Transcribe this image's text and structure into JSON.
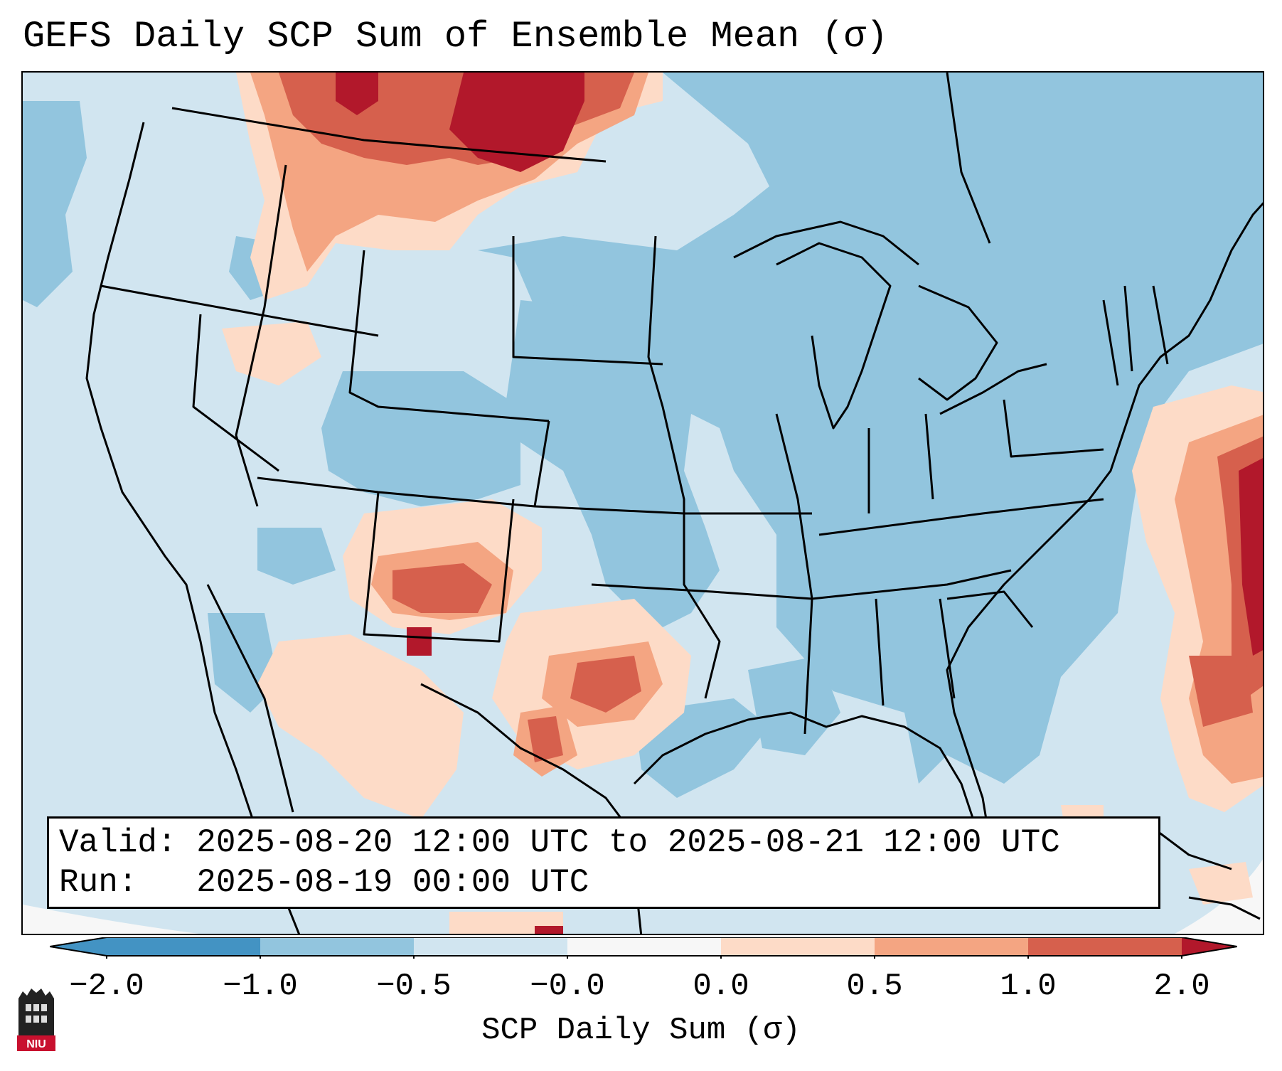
{
  "title": "GEFS Daily SCP Sum of Ensemble Mean (σ)",
  "info": {
    "valid_label": "Valid:",
    "valid_value": "2025-08-20 12:00 UTC to 2025-08-21 12:00 UTC",
    "run_label": "Run:",
    "run_value": "2025-08-19 00:00 UTC"
  },
  "colorbar": {
    "label": "SCP Daily Sum (σ)",
    "ticks": [
      "−2.0",
      "−1.0",
      "−0.5",
      "−0.0",
      "0.0",
      "0.5",
      "1.0",
      "2.0"
    ],
    "colors": {
      "under": "#4393c3",
      "neg_2_1": "#4393c3",
      "neg_1_05": "#92c5de",
      "neg_05_0": "#d1e5f0",
      "zero": "#f7f7f7",
      "pos_0_05": "#fddbc7",
      "pos_05_1": "#f4a582",
      "pos_1_2": "#d6604d",
      "over": "#b2182b"
    }
  },
  "logo": {
    "text": "NIU"
  }
}
